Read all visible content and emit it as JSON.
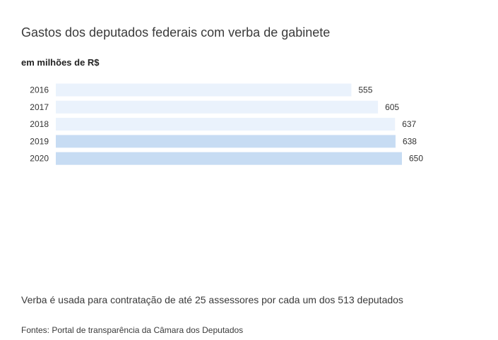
{
  "chart_data": {
    "type": "bar",
    "orientation": "horizontal",
    "title": "Gastos dos deputados federais com verba de gabinete",
    "subtitle": "em milhões de R$",
    "categories": [
      "2016",
      "2017",
      "2018",
      "2019",
      "2020"
    ],
    "values": [
      555,
      605,
      637,
      638,
      650
    ],
    "value_labels": [
      "555",
      "605",
      "637",
      "638",
      "650"
    ],
    "bar_colors": [
      "#eaf2fc",
      "#eaf2fc",
      "#eaf2fc",
      "#c7dcf3",
      "#c7dcf3"
    ],
    "xlim": [
      0,
      650
    ],
    "grid": false,
    "legend": "none"
  },
  "note": "Verba é usada para contratação de até 25 assessores por cada um dos 513 deputados",
  "source": "Fontes: Portal de transparência da Câmara dos Deputados"
}
